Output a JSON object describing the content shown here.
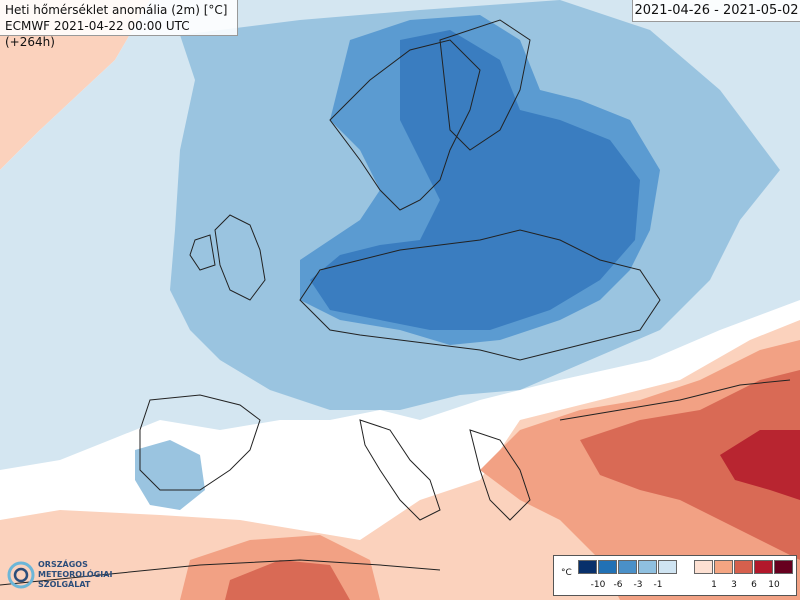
{
  "header": {
    "title": "Heti hőmérséklet anomália (2m) [°C]",
    "model_run": "ECMWF 2021-04-22 00:00 UTC (+264h)",
    "date_range": "2021-04-26 - 2021-05-02"
  },
  "legend": {
    "unit": "°C",
    "cold_labels": [
      "-10",
      "-6",
      "-3",
      "-1"
    ],
    "warm_labels": [
      "1",
      "3",
      "6",
      "10"
    ],
    "cold_colors": [
      "#08306b",
      "#2171b5",
      "#4a90c8",
      "#8fc0e0",
      "#cfe4f2"
    ],
    "warm_colors": [
      "#fde0d2",
      "#f4a582",
      "#d6604d",
      "#b2182b",
      "#67001f"
    ]
  },
  "logo": {
    "line1": "ORSZÁGOS",
    "line2": "METEOROLÓGIAI",
    "line3": "SZOLGÁLAT"
  },
  "colors": {
    "very_light_blue": "#d4e6f1",
    "light_blue": "#9ac4e0",
    "mid_blue": "#5b9bd1",
    "deep_blue": "#3a7dc0",
    "pale_red": "#fbd2bd",
    "light_red": "#f2a184",
    "mid_red": "#d96a55",
    "dark_red": "#b82530"
  }
}
